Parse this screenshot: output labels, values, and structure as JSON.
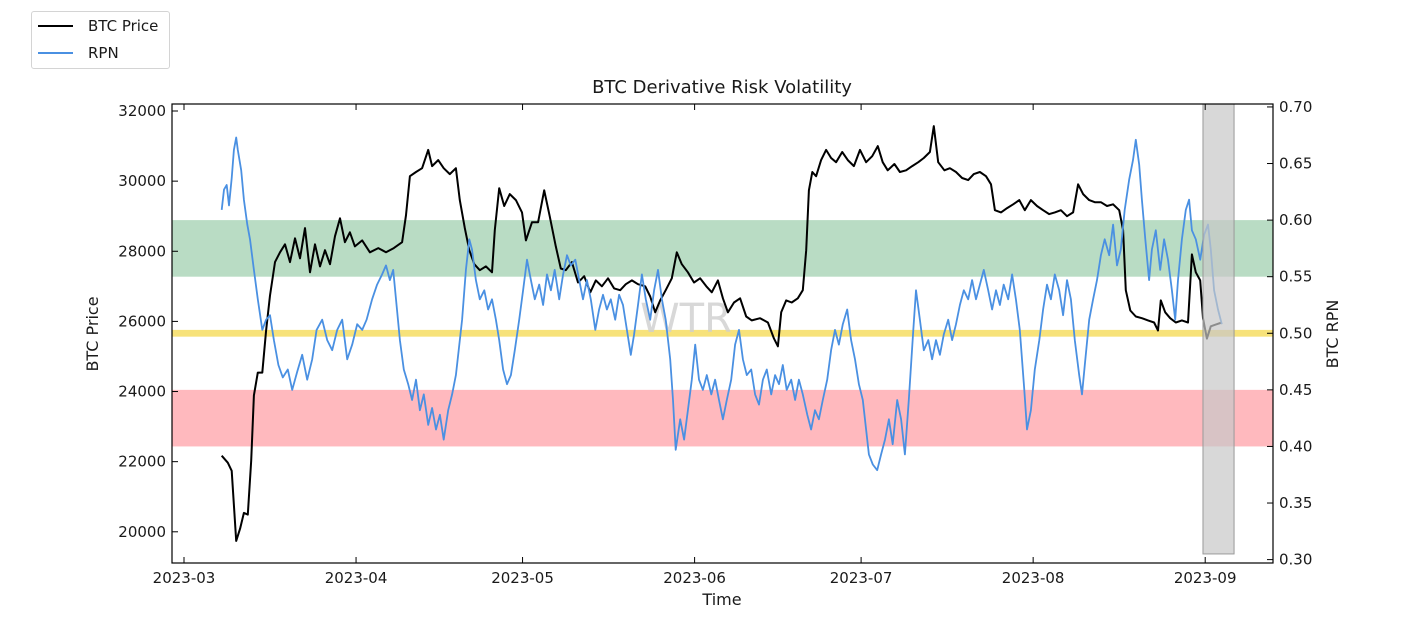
{
  "chart_data": {
    "type": "line",
    "title": "BTC Derivative Risk Volatility",
    "xlabel": "Time",
    "ylabel": "BTC Price",
    "y2label": "BTC RPN",
    "x_unit": "days since 2023-03-01",
    "xlim": [
      -2,
      197
    ],
    "ylim": [
      19110,
      32200
    ],
    "y2lim": [
      0.297,
      0.7026
    ],
    "x_ticks": [
      {
        "day": 0,
        "label": "2023-03"
      },
      {
        "day": 31,
        "label": "2023-04"
      },
      {
        "day": 61,
        "label": "2023-05"
      },
      {
        "day": 92,
        "label": "2023-06"
      },
      {
        "day": 122,
        "label": "2023-07"
      },
      {
        "day": 153,
        "label": "2023-08"
      },
      {
        "day": 184,
        "label": "2023-09"
      }
    ],
    "y_ticks": [
      {
        "value": 20000,
        "label": "20000"
      },
      {
        "value": 22000,
        "label": "22000"
      },
      {
        "value": 24000,
        "label": "24000"
      },
      {
        "value": 26000,
        "label": "26000"
      },
      {
        "value": 28000,
        "label": "28000"
      },
      {
        "value": 30000,
        "label": "30000"
      },
      {
        "value": 32000,
        "label": "32000"
      }
    ],
    "y2_ticks": [
      {
        "value": 0.3,
        "label": "0.30"
      },
      {
        "value": 0.35,
        "label": "0.35"
      },
      {
        "value": 0.4,
        "label": "0.40"
      },
      {
        "value": 0.45,
        "label": "0.45"
      },
      {
        "value": 0.5,
        "label": "0.50"
      },
      {
        "value": 0.55,
        "label": "0.55"
      },
      {
        "value": 0.6,
        "label": "0.60"
      },
      {
        "value": 0.65,
        "label": "0.65"
      },
      {
        "value": 0.7,
        "label": "0.70"
      }
    ],
    "grid": false,
    "legend_position": "top-left outside",
    "bands": [
      {
        "name": "high-risk-band",
        "axis": "y2",
        "from": 0.55,
        "to": 0.6,
        "color": "#b9dcc4"
      },
      {
        "name": "neutral-band",
        "axis": "y2",
        "from": 0.497,
        "to": 0.503,
        "color": "#f7e27a"
      },
      {
        "name": "low-risk-band",
        "axis": "y2",
        "from": 0.4,
        "to": 0.45,
        "color": "#ffb9be"
      }
    ],
    "highlight": {
      "x_from": 183.6,
      "x_to": 189.2,
      "y2_from": 0.305,
      "y2_to": 0.7026,
      "color": "#c8c8c8"
    },
    "series": [
      {
        "name": "BTC Price",
        "axis": "y",
        "color": "#000000",
        "x": [
          6.8,
          7.9,
          8.6,
          9.4,
          10.1,
          10.8,
          11.5,
          12.1,
          12.6,
          13.3,
          14.1,
          14.8,
          15.5,
          16.4,
          17.3,
          18.2,
          19.1,
          20.0,
          20.9,
          21.8,
          22.7,
          23.6,
          24.5,
          25.4,
          26.3,
          27.2,
          28.1,
          29.0,
          29.9,
          30.8,
          32.1,
          33.5,
          35.0,
          36.4,
          37.8,
          39.3,
          40.0,
          40.7,
          41.8,
          42.9,
          44.0,
          44.7,
          45.8,
          46.8,
          47.9,
          49.0,
          49.7,
          50.6,
          51.4,
          52.3,
          53.3,
          54.4,
          55.5,
          56.0,
          56.8,
          57.7,
          58.7,
          59.8,
          60.9,
          61.6,
          62.7,
          63.8,
          64.9,
          65.9,
          67.0,
          67.9,
          68.8,
          69.9,
          71.0,
          72.1,
          73.2,
          74.2,
          75.3,
          76.4,
          77.5,
          78.6,
          79.6,
          80.7,
          81.8,
          83.1,
          84.0,
          84.9,
          85.8,
          86.8,
          87.9,
          88.8,
          89.7,
          90.8,
          91.9,
          93.0,
          94.1,
          95.1,
          96.2,
          97.1,
          98.0,
          99.1,
          100.2,
          101.3,
          102.3,
          103.8,
          105.2,
          106.3,
          107.0,
          107.6,
          108.5,
          109.5,
          110.6,
          111.5,
          112.1,
          112.6,
          113.2,
          113.9,
          114.8,
          115.7,
          116.6,
          117.5,
          118.6,
          119.6,
          120.7,
          121.8,
          122.9,
          124.0,
          125.0,
          125.9,
          126.8,
          128.0,
          129.0,
          130.1,
          131.2,
          132.3,
          133.3,
          134.4,
          135.1,
          135.9,
          137.0,
          138.0,
          139.1,
          140.2,
          141.3,
          142.3,
          143.4,
          144.5,
          145.4,
          146.1,
          147.2,
          148.3,
          149.4,
          150.5,
          151.5,
          152.6,
          153.7,
          154.8,
          155.9,
          156.9,
          158.0,
          159.1,
          160.2,
          161.1,
          162.0,
          163.1,
          164.1,
          165.2,
          166.3,
          167.4,
          168.5,
          169.2,
          169.7,
          170.5,
          171.5,
          172.6,
          173.7,
          174.8,
          175.5,
          176.0,
          176.8,
          177.7,
          178.7,
          179.8,
          180.9,
          181.6,
          182.3,
          183.1,
          183.6,
          184.3,
          185.0,
          185.9,
          187.0
        ],
        "values": [
          22170,
          21970,
          21740,
          19740,
          20090,
          20540,
          20490,
          22030,
          23890,
          24540,
          24540,
          25740,
          26740,
          27690,
          27970,
          28200,
          27690,
          28370,
          27800,
          28660,
          27400,
          28200,
          27570,
          28030,
          27630,
          28430,
          28940,
          28260,
          28540,
          28140,
          28310,
          27970,
          28090,
          27970,
          28090,
          28260,
          29030,
          30140,
          30260,
          30370,
          30890,
          30430,
          30600,
          30370,
          30200,
          30370,
          29460,
          28660,
          28030,
          27630,
          27460,
          27570,
          27400,
          28600,
          29800,
          29290,
          29630,
          29460,
          29110,
          28310,
          28830,
          28830,
          29740,
          29000,
          28140,
          27510,
          27460,
          27690,
          27110,
          27290,
          26830,
          27170,
          27000,
          27230,
          26940,
          26890,
          27060,
          27170,
          27060,
          27000,
          26710,
          26260,
          26600,
          26890,
          27230,
          27970,
          27630,
          27400,
          27110,
          27230,
          27000,
          26830,
          27170,
          26660,
          26260,
          26540,
          26660,
          26140,
          26030,
          26090,
          25970,
          25510,
          25290,
          26260,
          26600,
          26540,
          26660,
          26890,
          28030,
          29740,
          30260,
          30140,
          30600,
          30890,
          30660,
          30540,
          30830,
          30600,
          30430,
          30890,
          30540,
          30710,
          31000,
          30540,
          30310,
          30490,
          30260,
          30310,
          30430,
          30540,
          30660,
          30830,
          31570,
          30540,
          30310,
          30370,
          30260,
          30090,
          30030,
          30200,
          30260,
          30140,
          29910,
          29170,
          29110,
          29230,
          29340,
          29460,
          29170,
          29460,
          29290,
          29170,
          29060,
          29110,
          29170,
          29000,
          29110,
          29910,
          29630,
          29460,
          29400,
          29400,
          29290,
          29340,
          29170,
          28600,
          26890,
          26310,
          26140,
          26090,
          26030,
          25970,
          25740,
          26600,
          26260,
          26090,
          25970,
          26030,
          25970,
          27910,
          27400,
          27170,
          26090,
          25510,
          25860,
          25910,
          25970
        ]
      },
      {
        "name": "RPN",
        "axis": "y2",
        "color": "#4a90e2",
        "x": [
          6.8,
          7.2,
          7.7,
          8.1,
          8.6,
          9.0,
          9.4,
          9.7,
          10.3,
          10.8,
          11.4,
          11.9,
          12.6,
          13.3,
          14.1,
          14.8,
          15.5,
          16.2,
          17.0,
          17.8,
          18.7,
          19.5,
          20.4,
          21.3,
          22.2,
          23.1,
          23.9,
          24.9,
          25.8,
          26.7,
          27.6,
          28.5,
          29.4,
          30.3,
          31.2,
          32.1,
          32.9,
          33.9,
          34.8,
          35.7,
          36.4,
          37.1,
          37.7,
          38.2,
          38.9,
          39.6,
          40.4,
          41.1,
          41.8,
          42.5,
          43.2,
          44.0,
          44.7,
          45.4,
          46.1,
          46.8,
          47.6,
          48.3,
          49.0,
          49.5,
          50.1,
          50.8,
          51.4,
          51.9,
          52.6,
          53.3,
          54.1,
          54.8,
          55.5,
          56.2,
          56.8,
          57.5,
          58.2,
          58.9,
          59.6,
          60.4,
          61.1,
          61.8,
          62.5,
          63.2,
          64.0,
          64.7,
          65.4,
          66.1,
          66.8,
          67.6,
          68.3,
          69.0,
          69.7,
          70.5,
          71.2,
          71.9,
          72.6,
          73.3,
          74.1,
          74.8,
          75.5,
          76.2,
          76.9,
          77.7,
          78.4,
          79.1,
          79.8,
          80.5,
          81.1,
          81.8,
          82.5,
          83.2,
          84.0,
          84.7,
          85.4,
          86.1,
          86.8,
          87.6,
          88.1,
          88.6,
          89.4,
          90.1,
          90.8,
          91.5,
          92.1,
          92.8,
          93.5,
          94.2,
          95.0,
          95.7,
          96.4,
          97.1,
          97.8,
          98.6,
          99.3,
          100.0,
          100.7,
          101.4,
          102.2,
          102.9,
          103.6,
          104.3,
          105.0,
          105.8,
          106.5,
          107.2,
          107.9,
          108.6,
          109.4,
          110.1,
          110.8,
          111.5,
          112.3,
          113.0,
          113.7,
          114.4,
          115.1,
          115.9,
          116.6,
          117.3,
          118.0,
          118.7,
          119.5,
          120.2,
          120.9,
          121.6,
          122.3,
          122.9,
          123.4,
          124.1,
          124.9,
          125.6,
          126.3,
          127.0,
          127.7,
          128.5,
          129.2,
          129.9,
          130.6,
          131.4,
          131.9,
          132.6,
          133.3,
          134.1,
          134.8,
          135.5,
          136.2,
          136.9,
          137.7,
          138.4,
          139.1,
          139.8,
          140.5,
          141.3,
          142.0,
          142.7,
          143.4,
          144.1,
          144.9,
          145.6,
          146.3,
          147.0,
          147.7,
          148.5,
          149.2,
          149.9,
          150.6,
          151.4,
          151.9,
          152.6,
          153.3,
          154.1,
          154.8,
          155.5,
          156.2,
          156.9,
          157.7,
          158.4,
          159.1,
          159.8,
          160.5,
          161.3,
          161.8,
          162.3,
          163.1,
          163.8,
          164.5,
          165.2,
          165.9,
          166.7,
          167.4,
          168.1,
          168.8,
          169.5,
          170.3,
          171.0,
          171.5,
          172.1,
          172.6,
          173.2,
          173.9,
          174.4,
          175.1,
          175.9,
          176.6,
          177.3,
          178.0,
          178.6,
          179.1,
          179.8,
          180.5,
          181.1,
          181.6,
          182.3,
          183.1,
          183.8,
          184.5,
          185.0,
          185.6,
          186.3,
          187.0
        ],
        "values": [
          0.609,
          0.627,
          0.631,
          0.613,
          0.637,
          0.662,
          0.673,
          0.662,
          0.644,
          0.618,
          0.596,
          0.583,
          0.556,
          0.53,
          0.503,
          0.512,
          0.516,
          0.494,
          0.472,
          0.461,
          0.468,
          0.45,
          0.466,
          0.481,
          0.459,
          0.477,
          0.503,
          0.512,
          0.494,
          0.485,
          0.503,
          0.512,
          0.477,
          0.49,
          0.508,
          0.503,
          0.512,
          0.53,
          0.543,
          0.552,
          0.56,
          0.547,
          0.556,
          0.53,
          0.494,
          0.468,
          0.455,
          0.441,
          0.459,
          0.432,
          0.446,
          0.419,
          0.434,
          0.415,
          0.428,
          0.406,
          0.432,
          0.446,
          0.463,
          0.485,
          0.512,
          0.556,
          0.583,
          0.574,
          0.547,
          0.53,
          0.538,
          0.521,
          0.53,
          0.512,
          0.494,
          0.468,
          0.455,
          0.463,
          0.485,
          0.512,
          0.538,
          0.565,
          0.547,
          0.53,
          0.543,
          0.525,
          0.552,
          0.538,
          0.556,
          0.53,
          0.552,
          0.569,
          0.56,
          0.565,
          0.547,
          0.53,
          0.547,
          0.53,
          0.503,
          0.521,
          0.534,
          0.521,
          0.53,
          0.512,
          0.534,
          0.525,
          0.503,
          0.481,
          0.499,
          0.525,
          0.552,
          0.53,
          0.512,
          0.538,
          0.556,
          0.53,
          0.512,
          0.477,
          0.441,
          0.397,
          0.424,
          0.406,
          0.432,
          0.459,
          0.49,
          0.459,
          0.45,
          0.463,
          0.446,
          0.459,
          0.441,
          0.424,
          0.441,
          0.459,
          0.49,
          0.503,
          0.477,
          0.463,
          0.468,
          0.446,
          0.437,
          0.459,
          0.468,
          0.446,
          0.463,
          0.455,
          0.472,
          0.45,
          0.459,
          0.441,
          0.459,
          0.446,
          0.428,
          0.415,
          0.432,
          0.424,
          0.441,
          0.459,
          0.485,
          0.503,
          0.49,
          0.508,
          0.521,
          0.494,
          0.477,
          0.455,
          0.441,
          0.415,
          0.393,
          0.384,
          0.379,
          0.393,
          0.406,
          0.424,
          0.402,
          0.441,
          0.424,
          0.393,
          0.441,
          0.503,
          0.538,
          0.512,
          0.485,
          0.494,
          0.477,
          0.494,
          0.481,
          0.499,
          0.512,
          0.494,
          0.508,
          0.525,
          0.538,
          0.53,
          0.547,
          0.53,
          0.543,
          0.556,
          0.538,
          0.521,
          0.538,
          0.525,
          0.543,
          0.53,
          0.552,
          0.53,
          0.503,
          0.45,
          0.415,
          0.432,
          0.468,
          0.494,
          0.521,
          0.543,
          0.53,
          0.552,
          0.538,
          0.516,
          0.547,
          0.53,
          0.494,
          0.463,
          0.446,
          0.472,
          0.512,
          0.53,
          0.547,
          0.569,
          0.583,
          0.569,
          0.596,
          0.56,
          0.574,
          0.609,
          0.636,
          0.653,
          0.671,
          0.649,
          0.618,
          0.583,
          0.547,
          0.574,
          0.591,
          0.556,
          0.583,
          0.565,
          0.538,
          0.512,
          0.547,
          0.583,
          0.609,
          0.618,
          0.591,
          0.583,
          0.565,
          0.587,
          0.596,
          0.574,
          0.538,
          0.521,
          0.508
        ]
      }
    ],
    "watermark": "WTR"
  }
}
